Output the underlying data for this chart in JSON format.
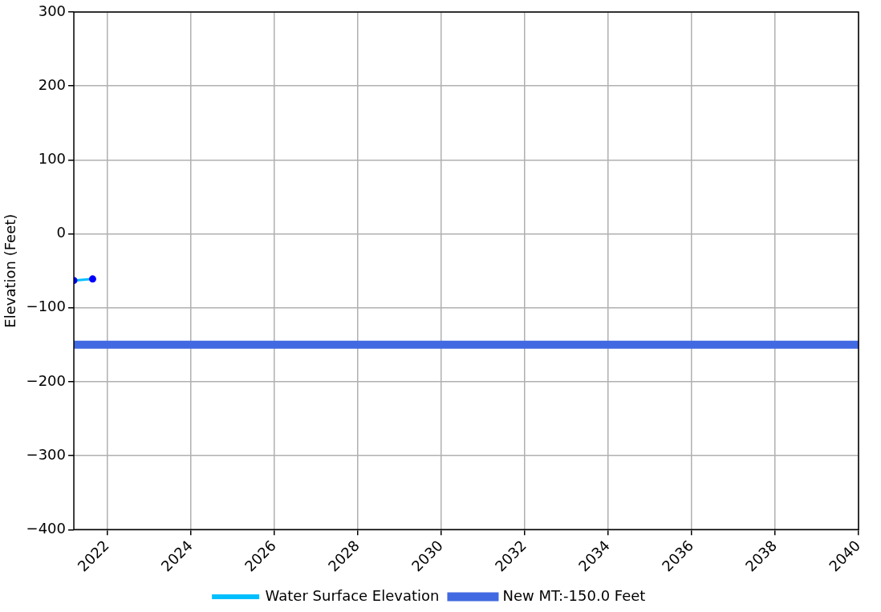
{
  "chart_data": {
    "type": "line",
    "ylabel": "Elevation (Feet)",
    "x": [
      2021.2,
      2021.65
    ],
    "series": [
      {
        "name": "Water Surface Elevation",
        "color": "#00bfff",
        "colors": [
          "#0000ff",
          "#0000ff"
        ],
        "values": [
          -63,
          -61
        ]
      }
    ],
    "xlim": [
      2021.2,
      2040
    ],
    "xticks": [
      2022,
      2024,
      2026,
      2028,
      2030,
      2032,
      2034,
      2036,
      2038,
      2040
    ],
    "ylim": [
      -400,
      300
    ],
    "yticks": [
      -400,
      -300,
      -200,
      -100,
      0,
      100,
      200,
      300
    ],
    "ref_lines": [
      {
        "axis": "y",
        "value": -150,
        "label": "New MT:-150.0 Feet",
        "color": "#4169e1"
      }
    ],
    "grid": true,
    "legend": "bottom",
    "marker": "circle",
    "line_style": "solid"
  }
}
